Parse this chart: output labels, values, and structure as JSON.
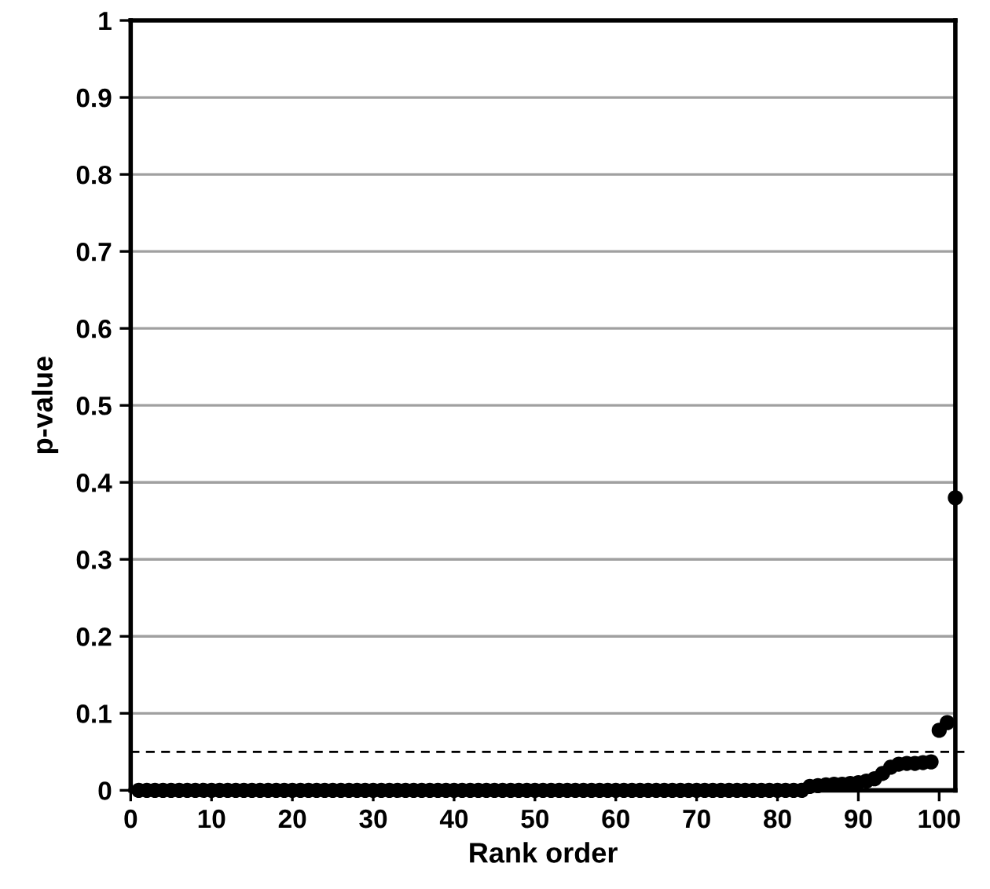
{
  "chart_data": {
    "type": "scatter",
    "xlabel": "Rank order",
    "ylabel": "p-value",
    "x": [
      1,
      2,
      3,
      4,
      5,
      6,
      7,
      8,
      9,
      10,
      11,
      12,
      13,
      14,
      15,
      16,
      17,
      18,
      19,
      20,
      21,
      22,
      23,
      24,
      25,
      26,
      27,
      28,
      29,
      30,
      31,
      32,
      33,
      34,
      35,
      36,
      37,
      38,
      39,
      40,
      41,
      42,
      43,
      44,
      45,
      46,
      47,
      48,
      49,
      50,
      51,
      52,
      53,
      54,
      55,
      56,
      57,
      58,
      59,
      60,
      61,
      62,
      63,
      64,
      65,
      66,
      67,
      68,
      69,
      70,
      71,
      72,
      73,
      74,
      75,
      76,
      77,
      78,
      79,
      80,
      81,
      82,
      83,
      84,
      85,
      86,
      87,
      88,
      89,
      90,
      91,
      92,
      93,
      94,
      95,
      96,
      97,
      98,
      99,
      100,
      101,
      102
    ],
    "series": [
      {
        "color": "#000000",
        "values": [
          0,
          0,
          0,
          0,
          0,
          0,
          0,
          0,
          0,
          0,
          0,
          0,
          0,
          0,
          0,
          0,
          0,
          0,
          0,
          0,
          0,
          0,
          0,
          0,
          0,
          0,
          0,
          0,
          0,
          0,
          0,
          0,
          0,
          0,
          0,
          0,
          0,
          0,
          0,
          0,
          0,
          0,
          0,
          0,
          0,
          0,
          0,
          0,
          0,
          0,
          0,
          0,
          0,
          0,
          0,
          0,
          0,
          0,
          0,
          0,
          0,
          0,
          0,
          0,
          0,
          0,
          0,
          0,
          0,
          0,
          0,
          0,
          0,
          0,
          0,
          0,
          0,
          0,
          0,
          0,
          0,
          0,
          0,
          0.005,
          0.006,
          0.007,
          0.008,
          0.008,
          0.009,
          0.01,
          0.012,
          0.015,
          0.022,
          0.03,
          0.034,
          0.035,
          0.035,
          0.036,
          0.037,
          0.078,
          0.088,
          0.38
        ]
      }
    ],
    "marker": "circle",
    "xlim": [
      0,
      102
    ],
    "ylim": [
      0,
      1
    ],
    "xticks": [
      0,
      10,
      20,
      30,
      40,
      50,
      60,
      70,
      80,
      90,
      100
    ],
    "yticks": [
      0,
      0.1,
      0.2,
      0.3,
      0.4,
      0.5,
      0.6,
      0.7,
      0.8,
      0.9,
      1
    ],
    "grid": "y",
    "ref_lines": [
      {
        "axis": "y",
        "value": 0.05,
        "line_style": "dashed",
        "color": "#000000"
      }
    ]
  }
}
